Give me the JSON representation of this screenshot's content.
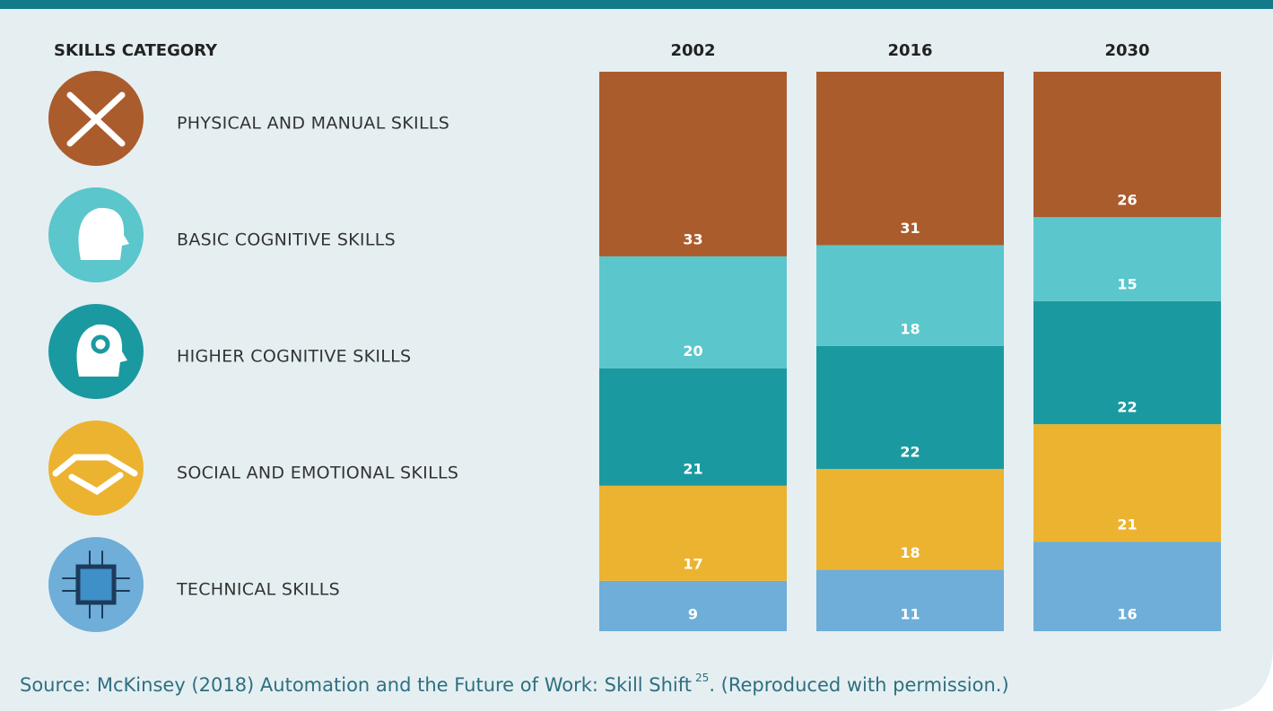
{
  "chart_data": {
    "type": "stacked_bar",
    "legend_title": "SKILLS CATEGORY",
    "categories": [
      "2002",
      "2016",
      "2030"
    ],
    "ylim": [
      0,
      100
    ],
    "series": [
      {
        "name": "PHYSICAL AND MANUAL SKILLS",
        "color": "#ab5c2c",
        "values": [
          33,
          31,
          26
        ]
      },
      {
        "name": "BASIC COGNITIVE SKILLS",
        "color": "#5bc6cb",
        "values": [
          20,
          18,
          15
        ]
      },
      {
        "name": "HIGHER COGNITIVE SKILLS",
        "color": "#1a9aa0",
        "values": [
          21,
          22,
          22
        ]
      },
      {
        "name": "SOCIAL AND EMOTIONAL SKILLS",
        "color": "#ecb330",
        "values": [
          17,
          18,
          21
        ]
      },
      {
        "name": "TECHNICAL SKILLS",
        "color": "#6eaed8",
        "values": [
          9,
          11,
          16
        ]
      }
    ],
    "source": {
      "text": "Source: McKinsey (2018) Automation and the Future of Work: Skill Shift",
      "ref": "25",
      "suffix": ". (Reproduced with permission.)"
    }
  }
}
